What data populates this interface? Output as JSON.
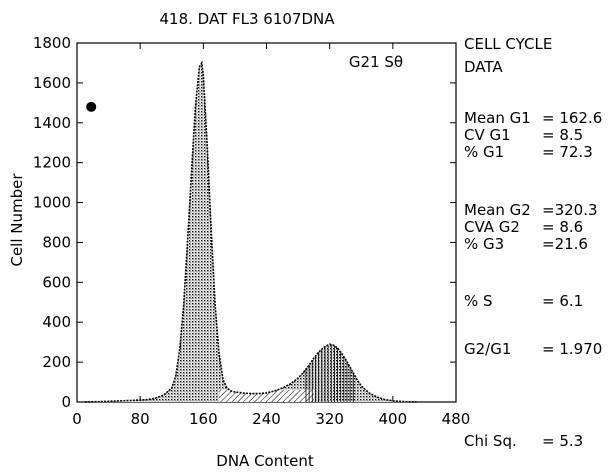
{
  "chart_data": {
    "type": "area",
    "title": "418. DAT FL3 6107DNA",
    "xlabel": "DNA Content",
    "ylabel": "Cell Number",
    "xlim": [
      0,
      480
    ],
    "ylim": [
      0,
      1800
    ],
    "x_ticks": [
      "0",
      "80",
      "160",
      "240",
      "320",
      "400",
      "480"
    ],
    "y_ticks": [
      "0",
      "200",
      "400",
      "600",
      "800",
      "1000",
      "1200",
      "1400",
      "1600",
      "1800"
    ],
    "annotation": "G21 Sθ",
    "marker_point": {
      "x": 18,
      "y": 1480
    },
    "grid": false,
    "legend": "none",
    "series": [
      {
        "x": [
          10,
          30,
          50,
          70,
          90,
          100,
          110,
          120,
          125,
          130,
          135,
          140,
          145,
          150,
          155,
          158,
          160,
          165,
          170,
          175,
          180,
          185,
          190,
          195,
          200,
          210,
          220,
          230,
          240,
          250,
          260,
          270,
          280,
          285,
          290,
          295,
          300,
          305,
          310,
          315,
          320,
          325,
          330,
          335,
          340,
          345,
          350,
          355,
          360,
          370,
          380,
          390,
          400,
          410,
          420,
          430
        ],
        "values": [
          0,
          2,
          5,
          8,
          12,
          20,
          35,
          70,
          130,
          260,
          480,
          800,
          1150,
          1480,
          1680,
          1700,
          1640,
          1280,
          860,
          480,
          240,
          110,
          70,
          55,
          50,
          45,
          42,
          42,
          45,
          55,
          70,
          90,
          120,
          140,
          165,
          190,
          220,
          245,
          265,
          280,
          290,
          285,
          270,
          245,
          215,
          180,
          145,
          110,
          80,
          45,
          25,
          12,
          6,
          3,
          1,
          0
        ]
      }
    ]
  },
  "cell_cycle_data": {
    "header": [
      "CELL CYCLE",
      "DATA"
    ],
    "rows": [
      {
        "label": "Mean G1",
        "value": "= 162.6"
      },
      {
        "label": "CV G1",
        "value": "= 8.5"
      },
      {
        "label": "% G1",
        "value": "= 72.3"
      },
      {
        "label": "Mean G2",
        "value": "=320.3"
      },
      {
        "label": "CVA G2",
        "value": "= 8.6"
      },
      {
        "label": "% G3",
        "value": "=21.6"
      },
      {
        "label": "% S",
        "value": "= 6.1"
      },
      {
        "label": "G2/G1",
        "value": "= 1.970"
      },
      {
        "label": "Chi Sq.",
        "value": "= 5.3"
      }
    ]
  }
}
